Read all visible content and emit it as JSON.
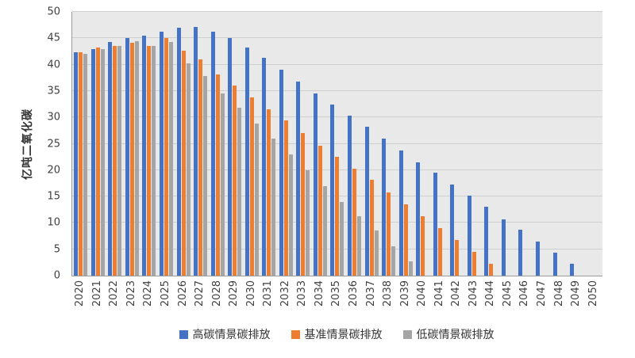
{
  "chart_data": {
    "type": "bar",
    "title": "",
    "xlabel": "",
    "ylabel": "亿吨二氧化碳",
    "ylim": [
      0,
      50
    ],
    "y_ticks": [
      0,
      5,
      10,
      15,
      20,
      25,
      30,
      35,
      40,
      45,
      50
    ],
    "grid": true,
    "legend_position": "bottom",
    "plot_background": "#e9e9e9",
    "categories": [
      "2020",
      "2021",
      "2022",
      "2023",
      "2024",
      "2025",
      "2026",
      "2027",
      "2028",
      "2029",
      "2030",
      "2031",
      "2032",
      "2033",
      "2034",
      "2035",
      "2036",
      "2037",
      "2038",
      "2039",
      "2040",
      "2041",
      "2042",
      "2043",
      "2044",
      "2045",
      "2046",
      "2047",
      "2048",
      "2049",
      "2050"
    ],
    "series": [
      {
        "key": "high",
        "name": "高碳情景碳排放",
        "color": "#4472C4",
        "values": [
          42.3,
          43,
          44.3,
          45,
          45.5,
          46.2,
          47,
          47.2,
          46.2,
          45,
          43.3,
          41.3,
          39,
          36.8,
          34.6,
          32.5,
          30.3,
          28.2,
          26,
          23.8,
          21.5,
          19.5,
          17.3,
          15.2,
          13,
          10.7,
          8.7,
          6.4,
          4.4,
          2.2,
          0
        ]
      },
      {
        "key": "baseline",
        "name": "基准情景碳排放",
        "color": "#ED7D31",
        "values": [
          42.4,
          43.2,
          43.6,
          44.2,
          43.6,
          45,
          42.7,
          41,
          38.2,
          36,
          33.8,
          31.5,
          29.4,
          27,
          24.7,
          22.5,
          20.2,
          18.1,
          15.8,
          13.5,
          11.3,
          9,
          6.7,
          4.5,
          2.3,
          0,
          0,
          0,
          0,
          0,
          0
        ]
      },
      {
        "key": "low",
        "name": "低碳情景碳排放",
        "color": "#A5A5A5",
        "values": [
          42,
          43,
          43.5,
          44.5,
          43.6,
          44.3,
          40.3,
          37.8,
          34.5,
          31.8,
          28.8,
          26,
          23,
          20,
          17,
          14,
          11.3,
          8.5,
          5.6,
          2.7,
          0,
          0,
          0,
          0,
          0,
          0,
          0,
          0,
          0,
          0,
          0
        ]
      }
    ]
  }
}
